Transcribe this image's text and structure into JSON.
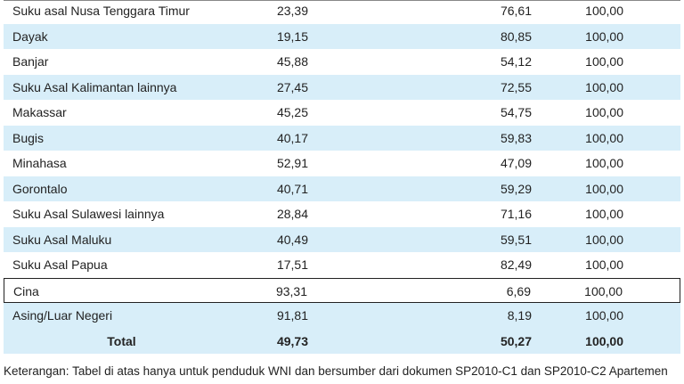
{
  "table": {
    "rows": [
      [
        "Suku asal Nusa Tenggara Timur",
        "23,39",
        "76,61",
        "100,00"
      ],
      [
        "Dayak",
        "19,15",
        "80,85",
        "100,00"
      ],
      [
        "Banjar",
        "45,88",
        "54,12",
        "100,00"
      ],
      [
        "Suku Asal Kalimantan lainnya",
        "27,45",
        "72,55",
        "100,00"
      ],
      [
        "Makassar",
        "45,25",
        "54,75",
        "100,00"
      ],
      [
        "Bugis",
        "40,17",
        "59,83",
        "100,00"
      ],
      [
        "Minahasa",
        "52,91",
        "47,09",
        "100,00"
      ],
      [
        "Gorontalo",
        "40,71",
        "59,29",
        "100,00"
      ],
      [
        "Suku Asal Sulawesi lainnya",
        "28,84",
        "71,16",
        "100,00"
      ],
      [
        "Suku Asal Maluku",
        "40,49",
        "59,51",
        "100,00"
      ],
      [
        "Suku Asal Papua",
        "17,51",
        "82,49",
        "100,00"
      ],
      [
        "Cina",
        "93,31",
        "6,69",
        "100,00"
      ],
      [
        "Asing/Luar Negeri",
        "91,81",
        "8,19",
        "100,00"
      ],
      [
        "Total",
        "49,73",
        "50,27",
        "100,00"
      ]
    ]
  },
  "note": "Keterangan: Tabel di atas hanya untuk penduduk WNI dan bersumber dari dokumen SP2010-C1 dan SP2010-C2 Apartemen"
}
